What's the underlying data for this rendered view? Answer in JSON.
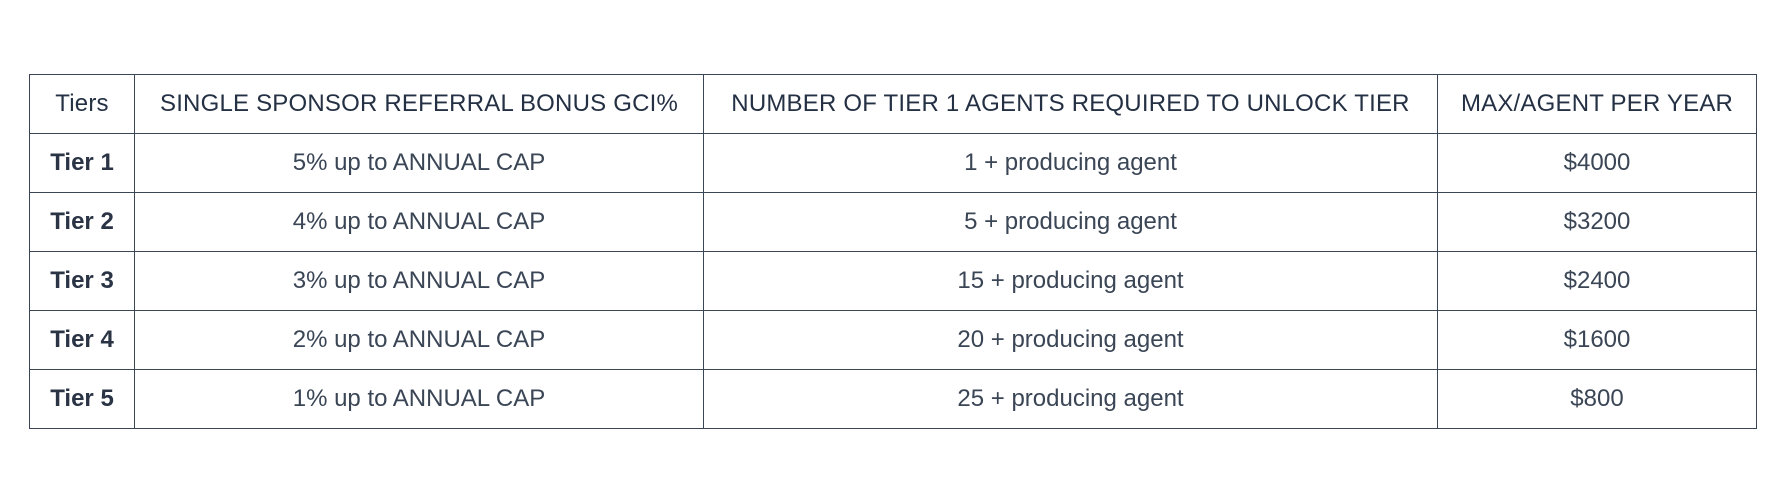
{
  "table": {
    "headers": [
      "Tiers",
      "SINGLE SPONSOR REFERRAL BONUS GCI%",
      "NUMBER OF TIER 1 AGENTS REQUIRED TO UNLOCK TIER",
      "MAX/AGENT PER YEAR"
    ],
    "rows": [
      {
        "tier": "Tier 1",
        "bonus": "5% up to ANNUAL CAP",
        "agents": "1 + producing agent",
        "max": "$4000"
      },
      {
        "tier": "Tier 2",
        "bonus": "4% up to ANNUAL CAP",
        "agents": "5 + producing agent",
        "max": "$3200"
      },
      {
        "tier": "Tier 3",
        "bonus": "3% up to ANNUAL CAP",
        "agents": "15 + producing agent",
        "max": "$2400"
      },
      {
        "tier": "Tier 4",
        "bonus": "2% up to ANNUAL CAP",
        "agents": "20 + producing agent",
        "max": "$1600"
      },
      {
        "tier": "Tier 5",
        "bonus": "1% up to ANNUAL CAP",
        "agents": "25 + producing agent",
        "max": "$800"
      }
    ]
  },
  "colors": {
    "text": "#2f3b4c",
    "border": "#3a4656",
    "background": "#ffffff"
  }
}
